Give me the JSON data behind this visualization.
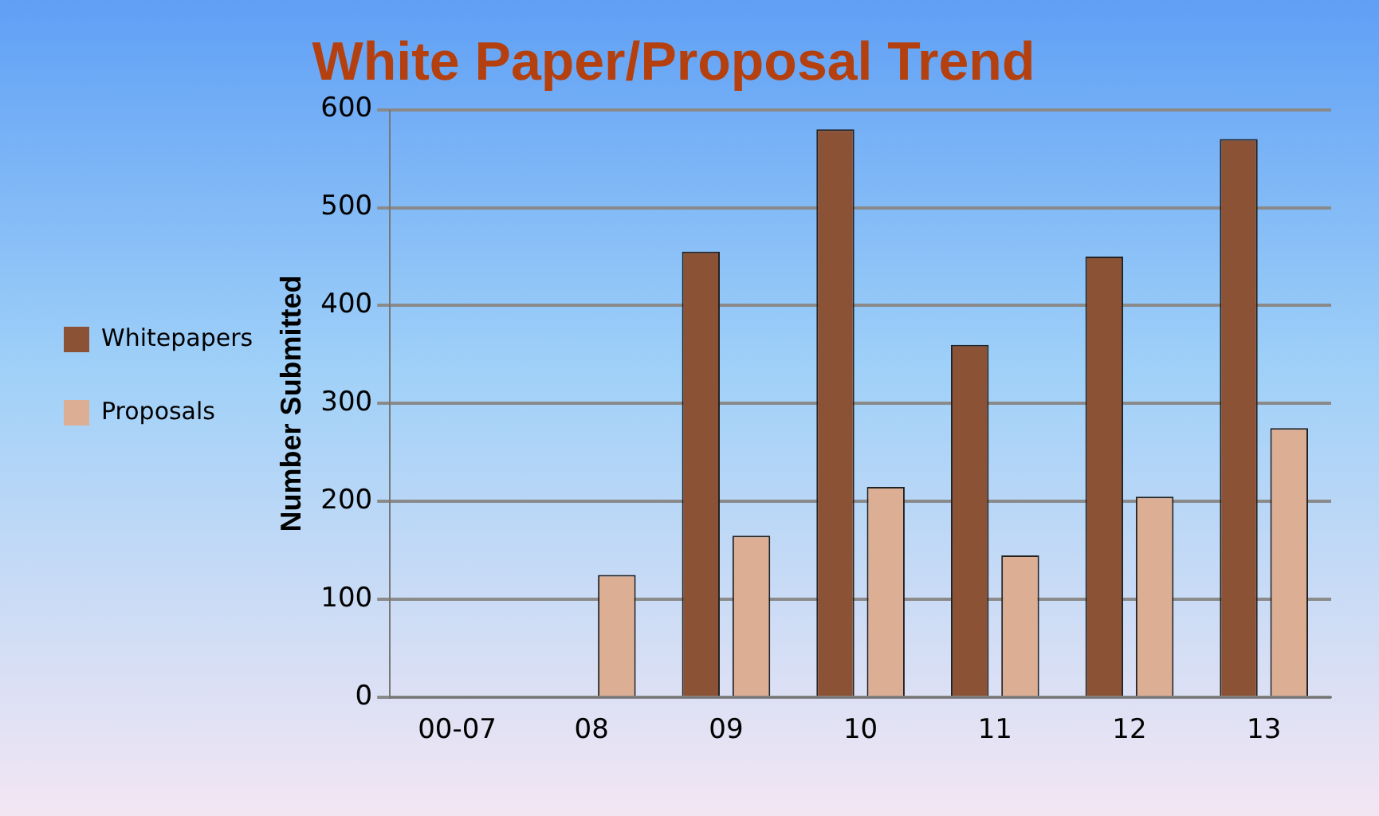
{
  "chart_data": {
    "type": "bar",
    "title": "White Paper/Proposal Trend",
    "ylabel": "Number Submitted",
    "categories": [
      "00-07",
      "08",
      "09",
      "10",
      "11",
      "12",
      "13"
    ],
    "series": [
      {
        "name": "Whitepapers",
        "color": "#8b5236",
        "values": [
          0,
          0,
          455,
          580,
          360,
          450,
          570
        ]
      },
      {
        "name": "Proposals",
        "color": "#dcae94",
        "values": [
          0,
          125,
          165,
          215,
          145,
          205,
          275
        ]
      }
    ],
    "ylim": [
      0,
      600
    ],
    "yticks": [
      0,
      100,
      200,
      300,
      400,
      500,
      600
    ],
    "grid": "y",
    "legend": "left"
  }
}
